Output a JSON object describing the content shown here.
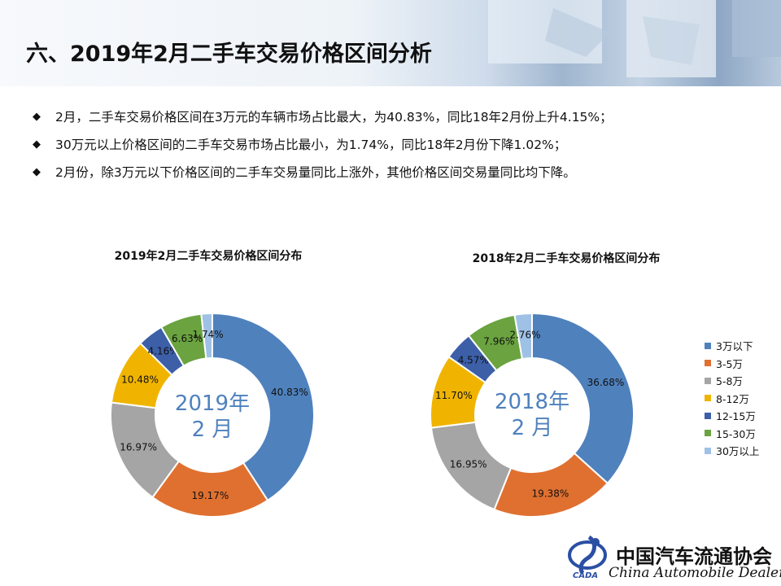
{
  "slide": {
    "title": "六、2019年2月二手车交易价格区间分析",
    "bullets": [
      "2月，二手车交易价格区间在3万元的车辆市场占比最大，为40.83%，同比18年2月份上升4.15%；",
      "30万元以上价格区间的二手车交易市场占比最小，为1.74%，同比18年2月份下降1.02%；",
      "2月份，除3万元以下价格区间的二手车交易量同比上涨外，其他价格区间交易量同比均下降。"
    ],
    "bullet_icon": "◆"
  },
  "colors": {
    "3万以下": "#4f81bd",
    "3-5万": "#e07030",
    "5-8万": "#a5a5a5",
    "8-12万": "#f0b400",
    "12-15万": "#3c5fa8",
    "15-30万": "#6aa33f",
    "30万以上": "#9fc1e6"
  },
  "footer": {
    "org_cn": "中国汽车流通协会",
    "org_en": "China  Automobile  Dealers",
    "logo_text": "CADA"
  },
  "chart_data": [
    {
      "type": "pie",
      "title": "2019年2月二手车交易价格区间分布",
      "center_label": [
        "2019年",
        "2 月"
      ],
      "categories": [
        "3万以下",
        "3-5万",
        "5-8万",
        "8-12万",
        "12-15万",
        "15-30万",
        "30万以上"
      ],
      "values": [
        40.83,
        19.17,
        16.97,
        10.48,
        4.16,
        6.63,
        1.74
      ],
      "data_labels": [
        "40.83%",
        "19.17%",
        "16.97%",
        "10.48%",
        "4.16%",
        "6.63%",
        "1.74%"
      ],
      "donut": true
    },
    {
      "type": "pie",
      "title": "2018年2月二手车交易价格区间分布",
      "center_label": [
        "2018年",
        "2 月"
      ],
      "categories": [
        "3万以下",
        "3-5万",
        "5-8万",
        "8-12万",
        "12-15万",
        "15-30万",
        "30万以上"
      ],
      "values": [
        36.68,
        19.38,
        16.95,
        11.7,
        4.57,
        7.96,
        2.76
      ],
      "data_labels": [
        "36.68%",
        "19.38%",
        "16.95%",
        "11.70%",
        "4.57%",
        "7.96%",
        "2.76%"
      ],
      "donut": true,
      "legend": "right"
    }
  ]
}
